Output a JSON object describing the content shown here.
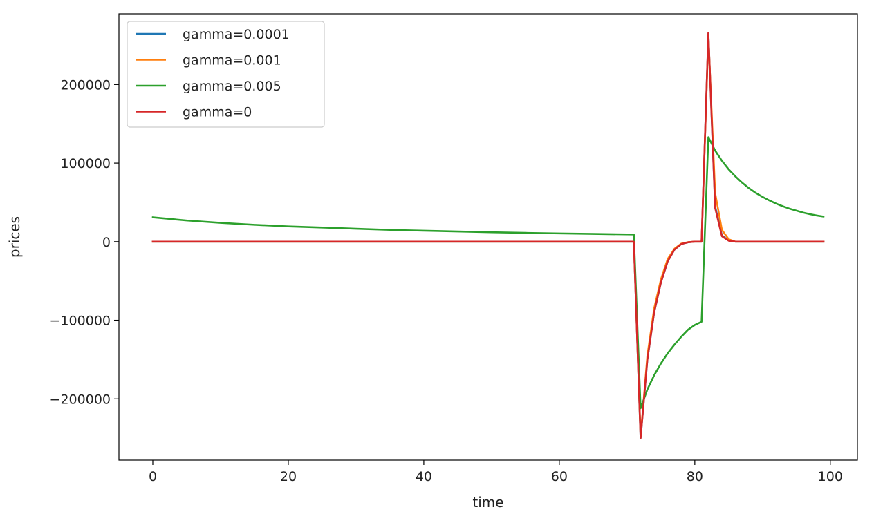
{
  "chart_data": {
    "type": "line",
    "title": "",
    "xlabel": "time",
    "ylabel": "prices",
    "xlim": [
      -5,
      104
    ],
    "ylim": [
      -278000,
      290000
    ],
    "xticks": [
      0,
      20,
      40,
      60,
      80,
      100
    ],
    "xtick_labels": [
      "0",
      "20",
      "40",
      "60",
      "80",
      "100"
    ],
    "yticks": [
      -200000,
      -100000,
      0,
      100000,
      200000
    ],
    "ytick_labels": [
      "−200000",
      "−100000",
      "0",
      "100000",
      "200000"
    ],
    "grid": false,
    "legend_position": "top-left",
    "series": [
      {
        "name": "gamma=0.0001",
        "color": "#1f77b4",
        "points": [
          [
            0,
            0
          ],
          [
            71,
            0
          ],
          [
            72,
            -250000
          ],
          [
            73,
            -150000
          ],
          [
            74,
            -90000
          ],
          [
            75,
            -52000
          ],
          [
            76,
            -25000
          ],
          [
            77,
            -10000
          ],
          [
            78,
            -3000
          ],
          [
            79,
            -800
          ],
          [
            80,
            0
          ],
          [
            81,
            0
          ],
          [
            82,
            265000
          ],
          [
            83,
            45000
          ],
          [
            84,
            8000
          ],
          [
            85,
            1500
          ],
          [
            86,
            0
          ],
          [
            99,
            0
          ]
        ]
      },
      {
        "name": "gamma=0.001",
        "color": "#ff7f0e",
        "points": [
          [
            0,
            0
          ],
          [
            71,
            0
          ],
          [
            72,
            -248000
          ],
          [
            73,
            -145000
          ],
          [
            74,
            -85000
          ],
          [
            75,
            -48000
          ],
          [
            76,
            -22000
          ],
          [
            77,
            -9000
          ],
          [
            78,
            -2500
          ],
          [
            79,
            -600
          ],
          [
            80,
            0
          ],
          [
            81,
            0
          ],
          [
            82,
            262000
          ],
          [
            83,
            62000
          ],
          [
            84,
            15000
          ],
          [
            85,
            3000
          ],
          [
            86,
            0
          ],
          [
            99,
            0
          ]
        ]
      },
      {
        "name": "gamma=0.005",
        "color": "#2ca02c",
        "points": [
          [
            0,
            31000
          ],
          [
            5,
            27000
          ],
          [
            10,
            24000
          ],
          [
            15,
            21500
          ],
          [
            20,
            19500
          ],
          [
            25,
            18000
          ],
          [
            30,
            16500
          ],
          [
            35,
            15000
          ],
          [
            40,
            14000
          ],
          [
            45,
            13000
          ],
          [
            50,
            12000
          ],
          [
            55,
            11200
          ],
          [
            60,
            10500
          ],
          [
            65,
            9900
          ],
          [
            70,
            9300
          ],
          [
            71,
            9200
          ],
          [
            72,
            -212000
          ],
          [
            73,
            -188000
          ],
          [
            74,
            -170000
          ],
          [
            75,
            -155000
          ],
          [
            76,
            -142000
          ],
          [
            77,
            -131000
          ],
          [
            78,
            -121000
          ],
          [
            79,
            -112000
          ],
          [
            80,
            -106000
          ],
          [
            81,
            -102000
          ],
          [
            82,
            133000
          ],
          [
            83,
            116000
          ],
          [
            84,
            103000
          ],
          [
            85,
            92000
          ],
          [
            86,
            83000
          ],
          [
            87,
            75000
          ],
          [
            88,
            68000
          ],
          [
            89,
            62000
          ],
          [
            90,
            57000
          ],
          [
            91,
            52500
          ],
          [
            92,
            48500
          ],
          [
            93,
            45000
          ],
          [
            94,
            42000
          ],
          [
            95,
            39500
          ],
          [
            96,
            37000
          ],
          [
            97,
            35000
          ],
          [
            98,
            33300
          ],
          [
            99,
            32000
          ]
        ]
      },
      {
        "name": "gamma=0",
        "color": "#d62728",
        "points": [
          [
            0,
            0
          ],
          [
            71,
            0
          ],
          [
            72,
            -250000
          ],
          [
            73,
            -150000
          ],
          [
            74,
            -90000
          ],
          [
            75,
            -52000
          ],
          [
            76,
            -25000
          ],
          [
            77,
            -10000
          ],
          [
            78,
            -3000
          ],
          [
            79,
            -800
          ],
          [
            80,
            0
          ],
          [
            81,
            0
          ],
          [
            82,
            266000
          ],
          [
            83,
            43000
          ],
          [
            84,
            7000
          ],
          [
            85,
            1200
          ],
          [
            86,
            0
          ],
          [
            99,
            0
          ]
        ]
      }
    ]
  }
}
